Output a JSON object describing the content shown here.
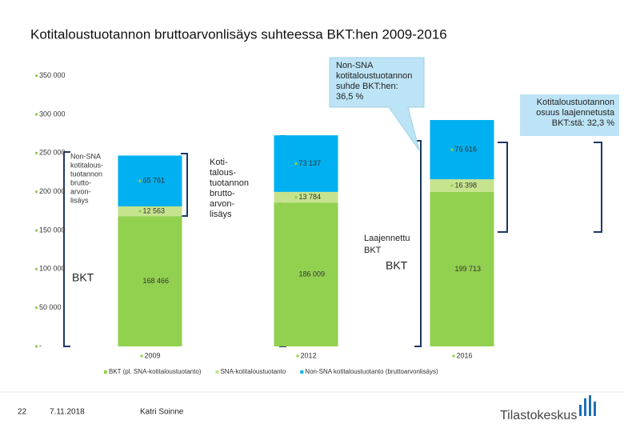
{
  "chart_data": {
    "type": "stacked-bar",
    "title": "Kotitaloustuotannon bruttoarvonlisäys suhteessa BKT:hen 2009-2016",
    "categories": [
      "2009",
      "2012",
      "2016"
    ],
    "series": [
      {
        "name": "BKT (pl. SNA-kotitaloustuotanto)",
        "color": "#92d050",
        "values": [
          168466,
          186009,
          199713
        ],
        "value_labels": [
          "168 466",
          "186 009",
          "199 713"
        ]
      },
      {
        "name": "SNA-kotitaloustuotanto",
        "color": "#c6e38e",
        "values": [
          12563,
          13784,
          16398
        ],
        "value_labels": [
          "12 563",
          "13 784",
          "16 398"
        ]
      },
      {
        "name": "Non-SNA kotitaloustuotanto (bruttoarvonlisäys)",
        "color": "#00b0f0",
        "values": [
          65761,
          73137,
          76616
        ],
        "value_labels": [
          "65 761",
          "73 137",
          "76 616"
        ]
      }
    ],
    "ylim": [
      0,
      360000
    ],
    "yticks": [
      {
        "value": 0,
        "label": "-"
      },
      {
        "value": 50000,
        "label": "50 000"
      },
      {
        "value": 100000,
        "label": "100 000"
      },
      {
        "value": 150000,
        "label": "150 000"
      },
      {
        "value": 200000,
        "label": "200 000"
      },
      {
        "value": 250000,
        "label": "250 000"
      },
      {
        "value": 300000,
        "label": "300 000"
      },
      {
        "value": 350000,
        "label": "350 000"
      }
    ],
    "annotations": {
      "non_sna_left": [
        "Non-SNA",
        "kotitalous-",
        "tuotannon",
        "brutto-",
        "arvon-",
        "lisäys"
      ],
      "household": [
        "Koti-",
        "talous-",
        "tuotannon",
        "brutto-",
        "arvon-",
        "lisäys"
      ],
      "callout": [
        "Non-SNA",
        "kotitaloustuotannon",
        "suhde BKT:hen:",
        "36,5 %"
      ],
      "share": [
        "Kotitaloustuotannon",
        "osuus laajennetusta",
        "BKT:stä: 32,3 %"
      ],
      "extended": [
        "Laajennettu",
        "BKT"
      ],
      "bkt_1": "BKT",
      "bkt_2": "BKT"
    }
  },
  "footer": {
    "page": "22",
    "date": "7.11.2018",
    "author": "Katri Soinne",
    "logo": "Tilastokeskus"
  }
}
